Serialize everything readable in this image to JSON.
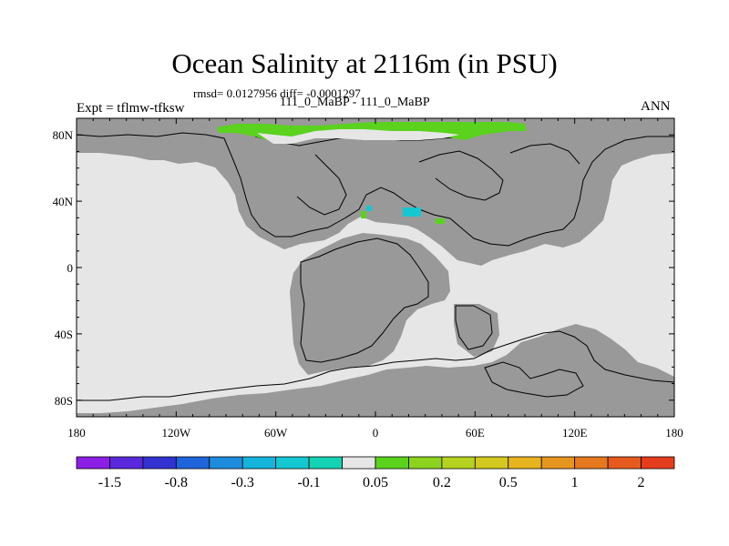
{
  "title": "Ocean Salinity at 2116m (in PSU)",
  "stats": "rmsd= 0.0127956 diff= -0.0001297",
  "subtitle": "111_0_MaBP - 111_0_MaBP",
  "expt_label": "Expt = tflmw-tfksw",
  "season": "ANN",
  "map": {
    "lon_range": [
      -180,
      180
    ],
    "lat_range": [
      -90,
      90
    ],
    "ocean_color": "#e6e6e6",
    "land_color": "#999999",
    "frame_color": "#000000"
  },
  "lat_ticks": [
    {
      "value": 80,
      "label": "80N"
    },
    {
      "value": 40,
      "label": "40N"
    },
    {
      "value": 0,
      "label": "0"
    },
    {
      "value": -40,
      "label": "40S"
    },
    {
      "value": -80,
      "label": "80S"
    }
  ],
  "lon_ticks": [
    {
      "value": -180,
      "label": "180"
    },
    {
      "value": -120,
      "label": "120W"
    },
    {
      "value": -60,
      "label": "60W"
    },
    {
      "value": 0,
      "label": "0"
    },
    {
      "value": 60,
      "label": "60E"
    },
    {
      "value": 120,
      "label": "120E"
    },
    {
      "value": 180,
      "label": "180"
    }
  ],
  "colorbar": {
    "colors": [
      "#8c1ee6",
      "#5a28dc",
      "#3232d2",
      "#1e64dc",
      "#1e8cdc",
      "#14b4dc",
      "#14c8d2",
      "#14d2b4",
      "#e6e6e6",
      "#5ad21e",
      "#8cd21e",
      "#b4d21e",
      "#d2c81e",
      "#e6b41e",
      "#e6961e",
      "#e6781e",
      "#e65a1e",
      "#e63c1e"
    ],
    "labels": [
      {
        "index": 1,
        "text": "-1.5"
      },
      {
        "index": 3,
        "text": "-0.8"
      },
      {
        "index": 5,
        "text": "-0.3"
      },
      {
        "index": 7,
        "text": "-0.1"
      },
      {
        "index": 9,
        "text": "0.05"
      },
      {
        "index": 11,
        "text": "0.2"
      },
      {
        "index": 13,
        "text": "0.5"
      },
      {
        "index": 15,
        "text": "1"
      },
      {
        "index": 17,
        "text": "2"
      }
    ]
  }
}
